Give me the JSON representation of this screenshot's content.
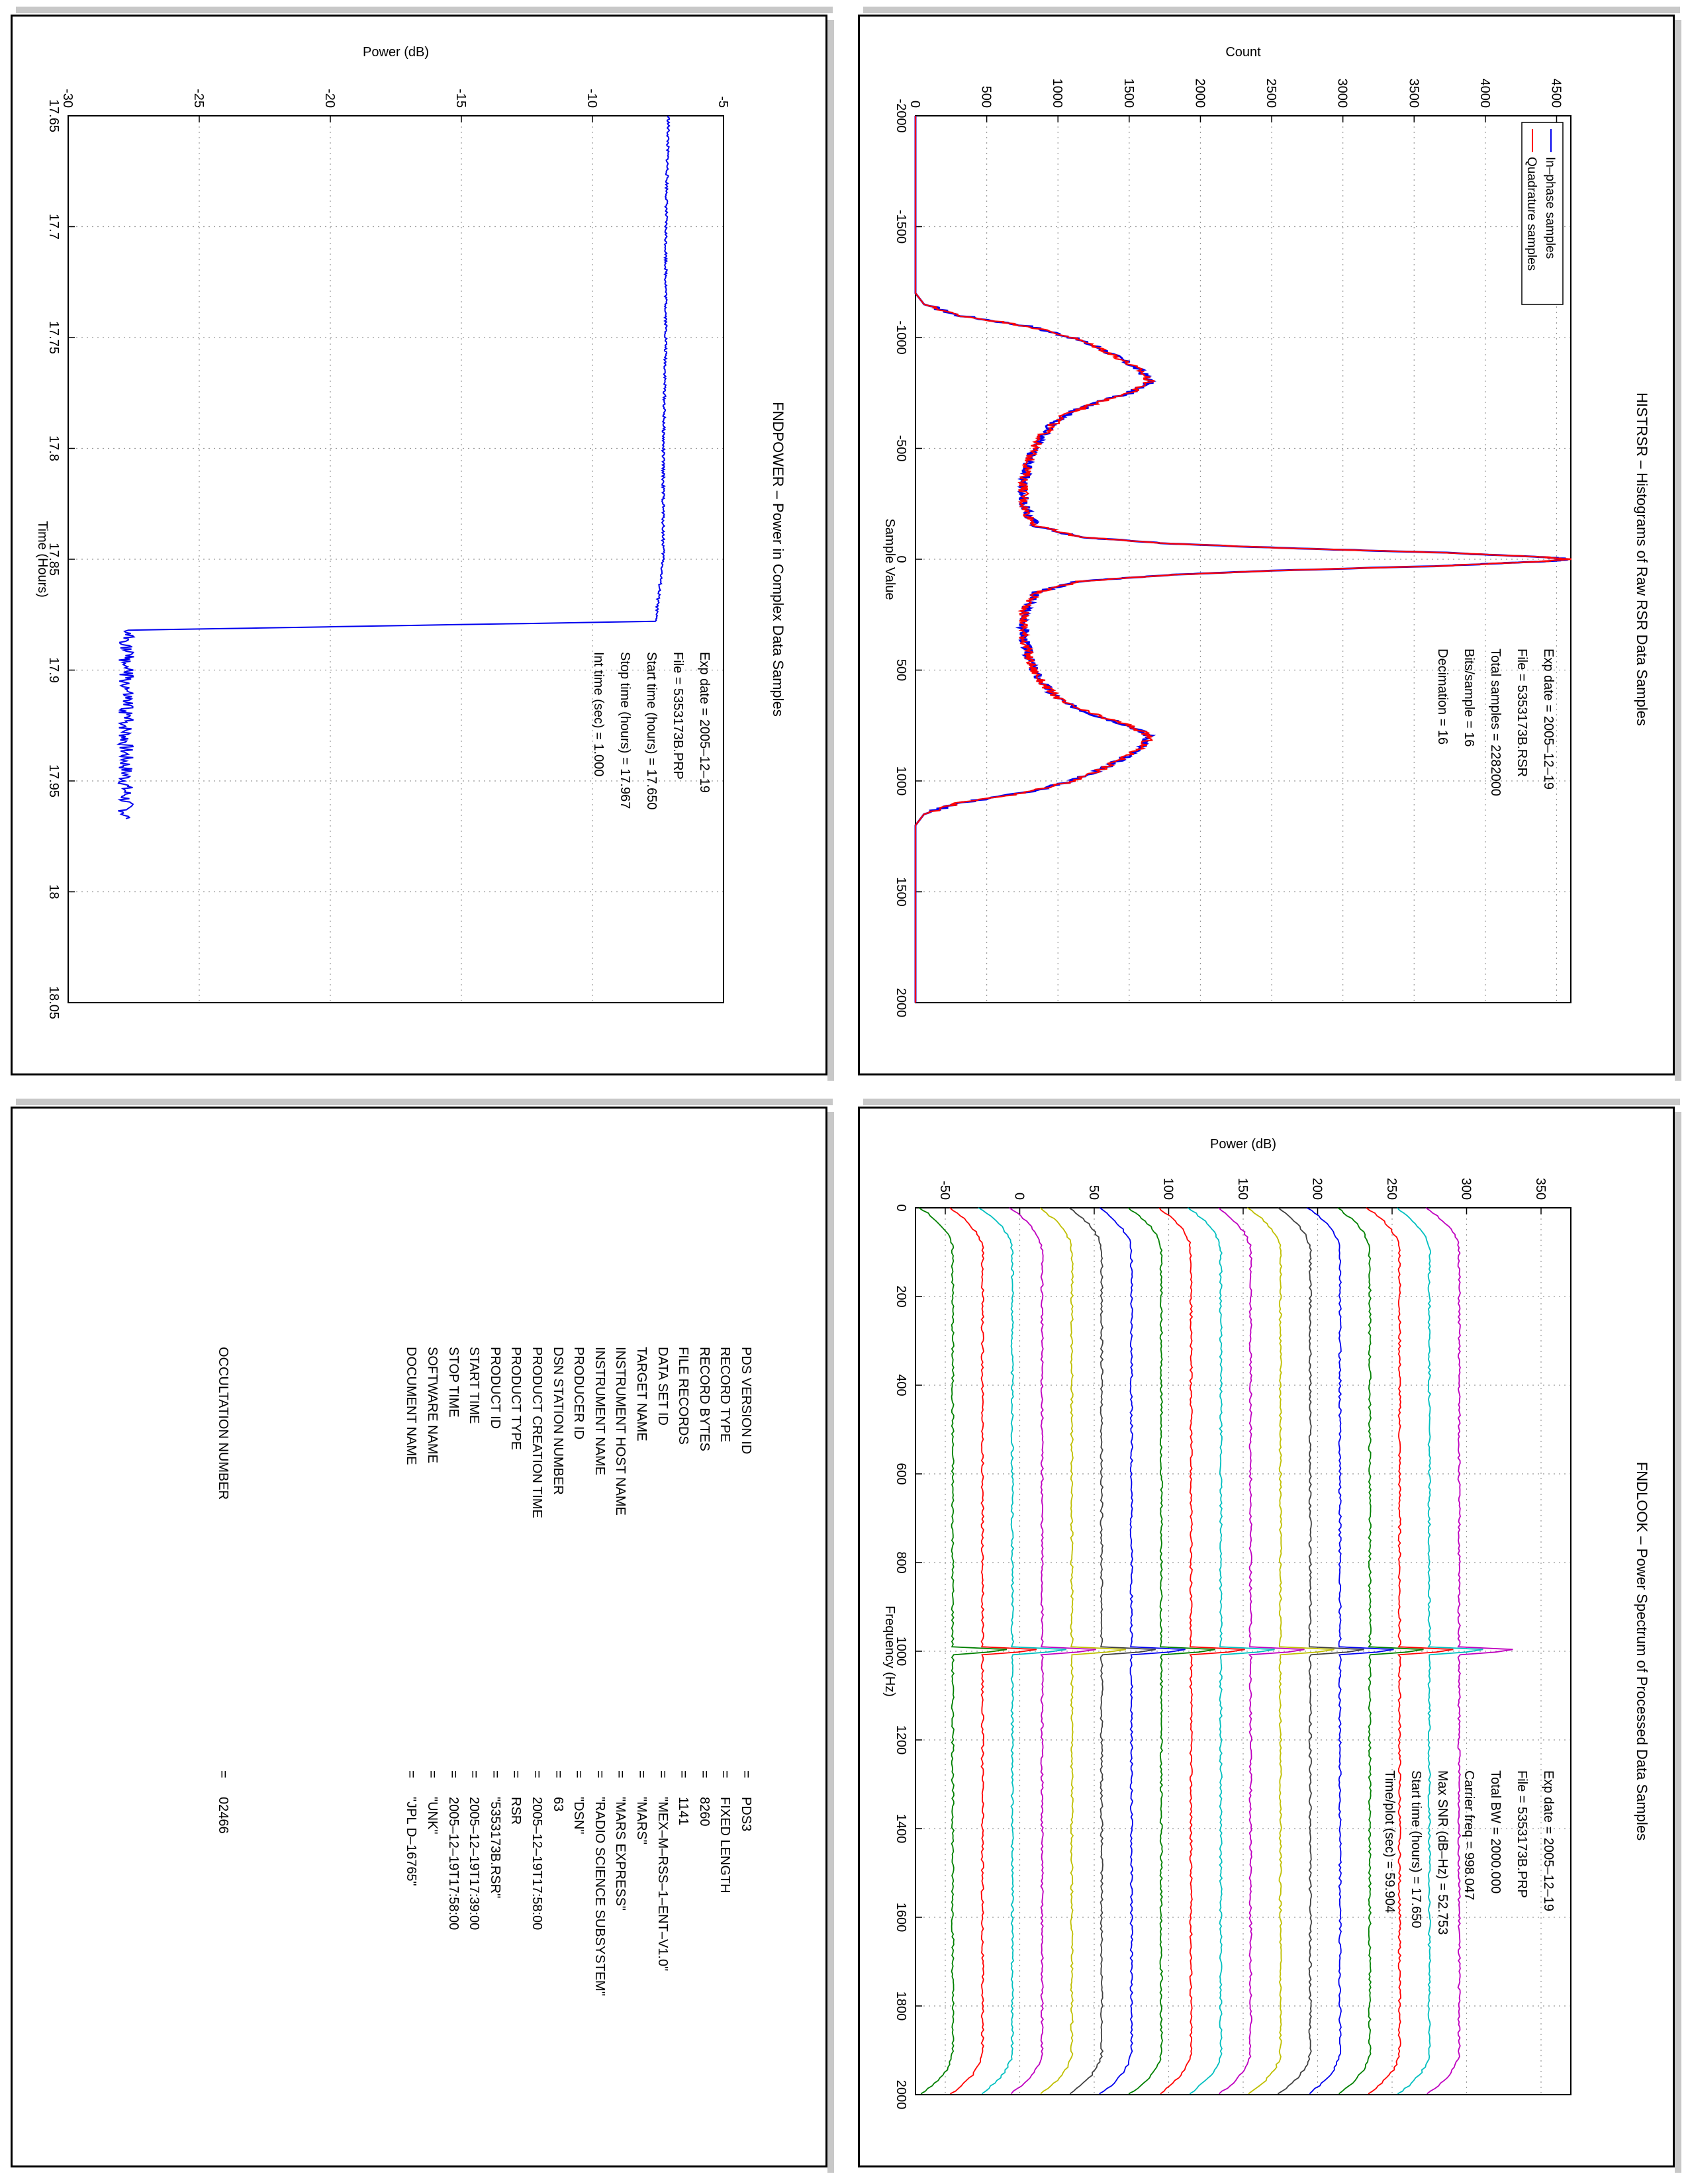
{
  "colors": {
    "blue": "#0000ee",
    "red": "#ff0000",
    "green": "#008000",
    "cyan": "#00bfbf",
    "magenta": "#bf00bf",
    "olive": "#bfbf00",
    "dark": "#404040",
    "grid": "#999999",
    "shadow": "#c8c8c8"
  },
  "histogram": {
    "title": "HISTRSR – Histograms of Raw RSR Data Samples",
    "xlabel": "Sample Value",
    "ylabel": "Count",
    "info": [
      "Exp date = 2005–12–19",
      "File = 5353173B.RSR",
      "Total samples =    2282000",
      "Bits/sample  =      16",
      "Decimation   =      16"
    ],
    "legend": [
      "In–phase samples",
      "Quadrature samples"
    ]
  },
  "fndpower": {
    "title": "FNDPOWER – Power in Complex Data Samples",
    "xlabel": "Time (Hours)",
    "ylabel": "Power (dB)",
    "info": [
      "Exp date = 2005–12–19",
      "File = 5353173B.PRP",
      "Start time (hours) = 17.650",
      "Stop time (hours) = 17.967",
      "Int time (sec)  =      1.000"
    ]
  },
  "fndlook": {
    "title": "FNDLOOK – Power Spectrum of Processed Data Samples",
    "xlabel": "Frequency (Hz)",
    "ylabel": "Power (dB)",
    "info": [
      "Exp date = 2005–12–19",
      "File = 5353173B.PRP",
      "Total BW =       2000.000",
      "Carrier freq  =    998.047",
      "Max SNR (dB–Hz) =     52.753",
      "Start time (hours) =   17.650",
      "Time/plot (sec) =     59.904"
    ]
  },
  "labels": {
    "rows": [
      {
        "key": "PDS VERSION ID",
        "value": "PDS3"
      },
      {
        "key": "RECORD TYPE",
        "value": "FIXED LENGTH"
      },
      {
        "key": "RECORD BYTES",
        "value": "8260"
      },
      {
        "key": "FILE RECORDS",
        "value": "1141"
      },
      {
        "key": "DATA SET ID",
        "value": "\"MEX–M–RSS–1–ENT–V1.0\""
      },
      {
        "key": "TARGET NAME",
        "value": "\"MARS\""
      },
      {
        "key": "INSTRUMENT HOST NAME",
        "value": "\"MARS EXPRESS\""
      },
      {
        "key": "INSTRUMENT NAME",
        "value": "\"RADIO SCIENCE SUBSYSTEM\""
      },
      {
        "key": "PRODUCER ID",
        "value": "\"DSN\""
      },
      {
        "key": "DSN STATION NUMBER",
        "value": "63"
      },
      {
        "key": "PRODUCT CREATION TIME",
        "value": "2005–12–19T17:58:00"
      },
      {
        "key": "PRODUCT TYPE",
        "value": "RSR"
      },
      {
        "key": "PRODUCT ID",
        "value": "\"5353173B.RSR\""
      },
      {
        "key": "START TIME",
        "value": "2005–12–19T17:39:00"
      },
      {
        "key": "STOP TIME",
        "value": "2005–12–19T17:58:00"
      },
      {
        "key": "SOFTWARE NAME",
        "value": "\"UNK\""
      },
      {
        "key": "DOCUMENT NAME",
        "value": "\"JPL D–16765\""
      },
      {
        "key": "",
        "value": ""
      },
      {
        "key": "",
        "value": ""
      },
      {
        "key": "",
        "value": ""
      },
      {
        "key": "",
        "value": ""
      },
      {
        "key": "",
        "value": ""
      },
      {
        "key": "",
        "value": ""
      },
      {
        "key": "",
        "value": ""
      },
      {
        "key": "",
        "value": ""
      },
      {
        "key": "OCCULTATION NUMBER",
        "value": "02466"
      }
    ],
    "eq": "="
  },
  "chart_data": [
    {
      "type": "line",
      "title": "HISTRSR – Histograms of Raw RSR Data Samples",
      "xlabel": "Sample Value",
      "ylabel": "Count",
      "xlim": [
        -2000,
        2000
      ],
      "ylim": [
        0,
        4600
      ],
      "xticks": [
        -2000,
        -1500,
        -1000,
        -500,
        0,
        500,
        1000,
        1500,
        2000
      ],
      "yticks": [
        0,
        500,
        1000,
        1500,
        2000,
        2500,
        3000,
        3500,
        4000,
        4500
      ],
      "grid": true,
      "legend_position": "top-left",
      "series": [
        {
          "name": "In–phase samples",
          "color": "#0000ee",
          "x": [
            -2000,
            -1200,
            -1150,
            -1100,
            -1050,
            -1000,
            -950,
            -900,
            -850,
            -800,
            -750,
            -700,
            -650,
            -600,
            -550,
            -500,
            -450,
            -400,
            -350,
            -300,
            -250,
            -200,
            -150,
            -100,
            -70,
            -50,
            -30,
            -10,
            0,
            10,
            30,
            50,
            70,
            100,
            150,
            200,
            250,
            300,
            350,
            400,
            450,
            500,
            550,
            600,
            650,
            700,
            750,
            800,
            850,
            900,
            950,
            1000,
            1050,
            1100,
            1150,
            1200,
            2000
          ],
          "y": [
            0,
            0,
            60,
            300,
            800,
            1100,
            1300,
            1450,
            1580,
            1650,
            1500,
            1250,
            1050,
            950,
            880,
            830,
            800,
            780,
            760,
            760,
            760,
            790,
            850,
            1150,
            1800,
            2600,
            3700,
            4400,
            4600,
            4400,
            3700,
            2600,
            1800,
            1150,
            850,
            790,
            760,
            760,
            760,
            780,
            800,
            830,
            880,
            950,
            1050,
            1250,
            1500,
            1650,
            1580,
            1450,
            1300,
            1100,
            800,
            300,
            60,
            0,
            0
          ]
        },
        {
          "name": "Quadrature samples",
          "color": "#ff0000",
          "x": [
            -2000,
            -1200,
            -1150,
            -1100,
            -1050,
            -1000,
            -950,
            -900,
            -850,
            -800,
            -750,
            -700,
            -650,
            -600,
            -550,
            -500,
            -450,
            -400,
            -350,
            -300,
            -250,
            -200,
            -150,
            -100,
            -70,
            -50,
            -30,
            -10,
            0,
            10,
            30,
            50,
            70,
            100,
            150,
            200,
            250,
            300,
            350,
            400,
            450,
            500,
            550,
            600,
            650,
            700,
            750,
            800,
            850,
            900,
            950,
            1000,
            1050,
            1100,
            1150,
            1200,
            2000
          ],
          "y": [
            0,
            0,
            60,
            300,
            800,
            1100,
            1300,
            1450,
            1580,
            1650,
            1500,
            1250,
            1050,
            950,
            880,
            830,
            800,
            780,
            760,
            760,
            760,
            790,
            850,
            1150,
            1800,
            2600,
            3700,
            4400,
            4600,
            4400,
            3700,
            2600,
            1800,
            1150,
            850,
            790,
            760,
            760,
            760,
            780,
            800,
            830,
            880,
            950,
            1050,
            1250,
            1500,
            1650,
            1580,
            1450,
            1300,
            1100,
            800,
            300,
            60,
            0,
            0
          ]
        }
      ]
    },
    {
      "type": "line",
      "title": "FNDPOWER – Power in Complex Data Samples",
      "xlabel": "Time (Hours)",
      "ylabel": "Power (dB)",
      "xlim": [
        17.65,
        18.05
      ],
      "ylim": [
        -30,
        -5
      ],
      "xticks": [
        17.65,
        17.7,
        17.75,
        17.8,
        17.85,
        17.9,
        17.95,
        18,
        18.05
      ],
      "yticks": [
        -30,
        -25,
        -20,
        -15,
        -10,
        -5
      ],
      "grid": true,
      "series": [
        {
          "color": "#0000ee",
          "x": [
            17.65,
            17.7,
            17.75,
            17.8,
            17.85,
            17.878,
            17.882,
            17.9,
            17.95,
            17.967
          ],
          "y": [
            -7.1,
            -7.2,
            -7.2,
            -7.3,
            -7.3,
            -7.6,
            -27.7,
            -27.8,
            -27.8,
            -27.8
          ]
        }
      ]
    },
    {
      "type": "line",
      "title": "FNDLOOK – Power Spectrum of Processed Data Samples",
      "xlabel": "Frequency (Hz)",
      "ylabel": "Power (dB)",
      "xlim": [
        0,
        2000
      ],
      "ylim": [
        -70,
        370
      ],
      "xticks": [
        0,
        200,
        400,
        600,
        800,
        1000,
        1200,
        1400,
        1600,
        1800,
        2000
      ],
      "yticks": [
        -50,
        0,
        50,
        100,
        150,
        200,
        250,
        300,
        350
      ],
      "grid": true,
      "series_baselines": [
        295,
        275,
        255,
        235,
        215,
        195,
        175,
        155,
        135,
        115,
        95,
        75,
        55,
        35,
        15,
        -5,
        -25,
        -45
      ],
      "series_colors": [
        "#bf00bf",
        "#00bfbf",
        "#ff0000",
        "#008000",
        "#0000ee",
        "#404040",
        "#bfbf00",
        "#bf00bf",
        "#00bfbf",
        "#ff0000",
        "#008000",
        "#0000ee",
        "#404040",
        "#bfbf00",
        "#bf00bf",
        "#00bfbf",
        "#ff0000",
        "#008000"
      ],
      "carrier_freq": 998.047
    }
  ]
}
